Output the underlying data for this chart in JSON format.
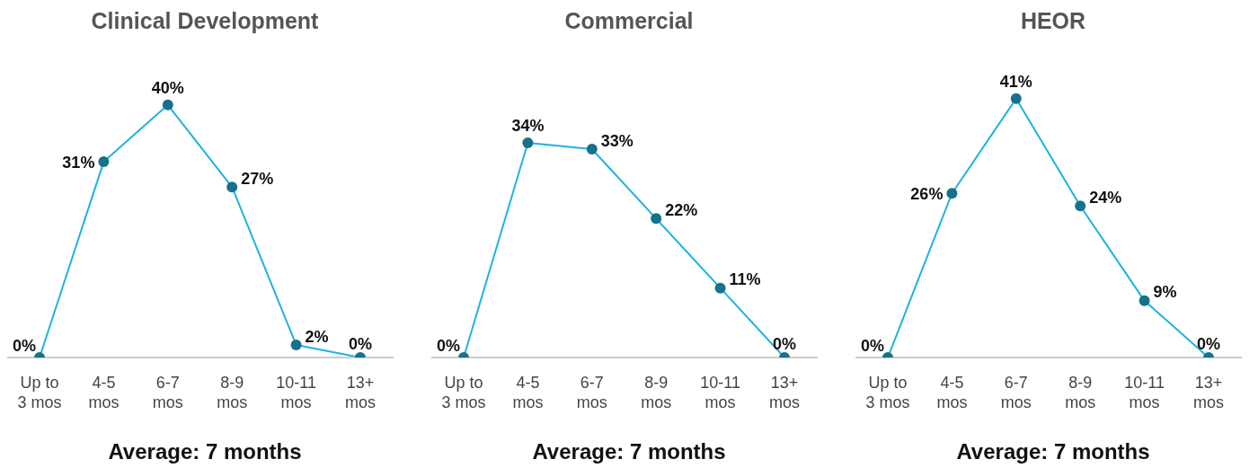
{
  "chart_data": [
    {
      "type": "line",
      "title": "Clinical Development",
      "categories": [
        "Up to 3 mos",
        "4-5 mos",
        "6-7 mos",
        "8-9 mos",
        "10-11 mos",
        "13+ mos"
      ],
      "marker": "circle",
      "annotations": [
        "Average: 7 months"
      ],
      "series": [
        {
          "color": "#1db3e0",
          "colors": [
            "#16718c",
            "#16718c",
            "#16718c",
            "#16718c",
            "#16718c",
            "#16718c"
          ],
          "values": [
            0,
            31,
            40,
            27,
            2,
            0
          ],
          "value_labels": [
            "0%",
            "31%",
            "40%",
            "27%",
            "2%",
            "0%"
          ]
        }
      ]
    },
    {
      "type": "line",
      "title": "Commercial",
      "categories": [
        "Up to 3 mos",
        "4-5 mos",
        "6-7 mos",
        "8-9 mos",
        "10-11 mos",
        "13+ mos"
      ],
      "marker": "circle",
      "annotations": [
        "Average: 7 months"
      ],
      "series": [
        {
          "color": "#1db3e0",
          "colors": [
            "#16718c",
            "#16718c",
            "#16718c",
            "#16718c",
            "#16718c",
            "#16718c"
          ],
          "values": [
            0,
            34,
            33,
            22,
            11,
            0
          ],
          "value_labels": [
            "0%",
            "34%",
            "33%",
            "22%",
            "11%",
            "0%"
          ]
        }
      ]
    },
    {
      "type": "line",
      "title": "HEOR",
      "categories": [
        "Up to 3 mos",
        "4-5 mos",
        "6-7 mos",
        "8-9 mos",
        "10-11 mos",
        "13+ mos"
      ],
      "marker": "circle",
      "annotations": [
        "Average: 7 months"
      ],
      "series": [
        {
          "color": "#1db3e0",
          "colors": [
            "#16718c",
            "#16718c",
            "#16718c",
            "#16718c",
            "#16718c",
            "#16718c"
          ],
          "values": [
            0,
            26,
            41,
            24,
            9,
            0
          ],
          "value_labels": [
            "0%",
            "26%",
            "41%",
            "24%",
            "9%",
            "0%"
          ]
        }
      ]
    }
  ]
}
